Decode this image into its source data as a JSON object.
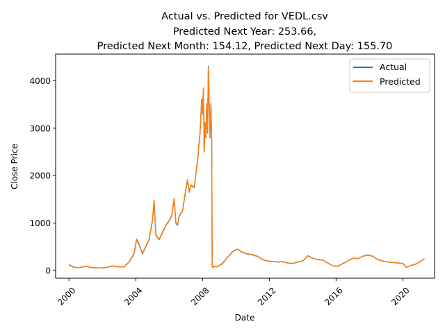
{
  "chart_data": {
    "type": "line",
    "title_lines": [
      "Actual vs. Predicted for VEDL.csv",
      "Predicted Next Year: 253.66,",
      "Predicted Next Month: 154.12, Predicted Next Day: 155.70"
    ],
    "xlabel": "Date",
    "ylabel": "Close Price",
    "xlim": [
      1999.2,
      2021.9
    ],
    "ylim": [
      -160,
      4560
    ],
    "x_ticks": [
      2000,
      2004,
      2008,
      2012,
      2016,
      2020
    ],
    "x_tick_labels": [
      "2000",
      "2004",
      "2008",
      "2012",
      "2016",
      "2020"
    ],
    "y_ticks": [
      0,
      1000,
      2000,
      3000,
      4000
    ],
    "y_tick_labels": [
      "0",
      "1000",
      "2000",
      "3000",
      "4000"
    ],
    "grid": false,
    "legend_position": "top-right",
    "series": [
      {
        "name": "Actual",
        "color": "#1f77b4",
        "x": [
          2000.0,
          2000.3,
          2000.6,
          2001.0,
          2001.4,
          2001.8,
          2002.2,
          2002.6,
          2003.0,
          2003.3,
          2003.6,
          2003.9,
          2004.05,
          2004.2,
          2004.4,
          2004.6,
          2004.8,
          2005.0,
          2005.1,
          2005.2,
          2005.4,
          2005.6,
          2005.8,
          2006.0,
          2006.15,
          2006.3,
          2006.4,
          2006.5,
          2006.6,
          2006.8,
          2007.0,
          2007.1,
          2007.2,
          2007.3,
          2007.5,
          2007.7,
          2007.85,
          2007.95,
          2008.0,
          2008.05,
          2008.1,
          2008.15,
          2008.2,
          2008.25,
          2008.3,
          2008.35,
          2008.4,
          2008.45,
          2008.5,
          2008.55,
          2008.58,
          2008.62,
          2008.7,
          2008.9,
          2009.2,
          2009.5,
          2009.8,
          2010.1,
          2010.4,
          2010.7,
          2011.0,
          2011.3,
          2011.6,
          2011.9,
          2012.2,
          2012.5,
          2012.8,
          2013.1,
          2013.4,
          2013.7,
          2014.0,
          2014.3,
          2014.6,
          2014.9,
          2015.2,
          2015.5,
          2015.8,
          2016.1,
          2016.4,
          2016.7,
          2017.0,
          2017.3,
          2017.6,
          2017.9,
          2018.2,
          2018.5,
          2018.8,
          2019.1,
          2019.4,
          2019.7,
          2020.0,
          2020.2,
          2020.5,
          2020.8,
          2021.0,
          2021.3
        ],
        "y": [
          120,
          70,
          60,
          90,
          60,
          55,
          60,
          100,
          75,
          80,
          180,
          350,
          650,
          550,
          350,
          500,
          650,
          1050,
          1450,
          750,
          650,
          800,
          950,
          1050,
          1150,
          1500,
          1000,
          950,
          1150,
          1250,
          1700,
          1900,
          1650,
          1800,
          1750,
          2300,
          2900,
          3600,
          3300,
          3800,
          2500,
          3100,
          2800,
          3500,
          2900,
          4300,
          3500,
          2800,
          3500,
          2700,
          100,
          60,
          90,
          80,
          150,
          280,
          400,
          450,
          380,
          350,
          330,
          300,
          230,
          200,
          190,
          180,
          190,
          160,
          150,
          180,
          200,
          310,
          260,
          230,
          220,
          160,
          100,
          90,
          150,
          200,
          260,
          250,
          300,
          330,
          300,
          230,
          200,
          180,
          170,
          160,
          150,
          70,
          110,
          140,
          180,
          250
        ]
      },
      {
        "name": "Predicted",
        "color": "#ff7f0e",
        "x": [
          2000.0,
          2000.3,
          2000.6,
          2001.0,
          2001.4,
          2001.8,
          2002.2,
          2002.6,
          2003.0,
          2003.3,
          2003.6,
          2003.9,
          2004.05,
          2004.2,
          2004.4,
          2004.6,
          2004.8,
          2005.0,
          2005.1,
          2005.2,
          2005.4,
          2005.6,
          2005.8,
          2006.0,
          2006.15,
          2006.3,
          2006.4,
          2006.5,
          2006.6,
          2006.8,
          2007.0,
          2007.1,
          2007.2,
          2007.3,
          2007.5,
          2007.7,
          2007.85,
          2007.95,
          2008.0,
          2008.05,
          2008.1,
          2008.15,
          2008.2,
          2008.25,
          2008.3,
          2008.35,
          2008.4,
          2008.45,
          2008.5,
          2008.55,
          2008.58,
          2008.62,
          2008.7,
          2008.9,
          2009.2,
          2009.5,
          2009.8,
          2010.1,
          2010.4,
          2010.7,
          2011.0,
          2011.3,
          2011.6,
          2011.9,
          2012.2,
          2012.5,
          2012.8,
          2013.1,
          2013.4,
          2013.7,
          2014.0,
          2014.3,
          2014.6,
          2014.9,
          2015.2,
          2015.5,
          2015.8,
          2016.1,
          2016.4,
          2016.7,
          2017.0,
          2017.3,
          2017.6,
          2017.9,
          2018.2,
          2018.5,
          2018.8,
          2019.1,
          2019.4,
          2019.7,
          2020.0,
          2020.2,
          2020.5,
          2020.8,
          2021.0,
          2021.3
        ],
        "y": [
          125,
          72,
          62,
          92,
          62,
          57,
          62,
          102,
          77,
          82,
          185,
          360,
          670,
          560,
          360,
          510,
          660,
          1070,
          1480,
          760,
          660,
          810,
          960,
          1060,
          1160,
          1520,
          1010,
          960,
          1160,
          1260,
          1720,
          1920,
          1660,
          1810,
          1760,
          2320,
          2920,
          3620,
          3320,
          3850,
          2520,
          3120,
          2820,
          3520,
          2920,
          4280,
          3520,
          2820,
          3520,
          2720,
          105,
          65,
          92,
          82,
          155,
          285,
          405,
          455,
          385,
          355,
          335,
          305,
          235,
          205,
          192,
          182,
          192,
          162,
          152,
          182,
          202,
          315,
          262,
          232,
          222,
          162,
          102,
          92,
          152,
          202,
          262,
          252,
          302,
          335,
          302,
          232,
          202,
          182,
          172,
          162,
          152,
          72,
          112,
          142,
          182,
          254
        ]
      }
    ]
  }
}
